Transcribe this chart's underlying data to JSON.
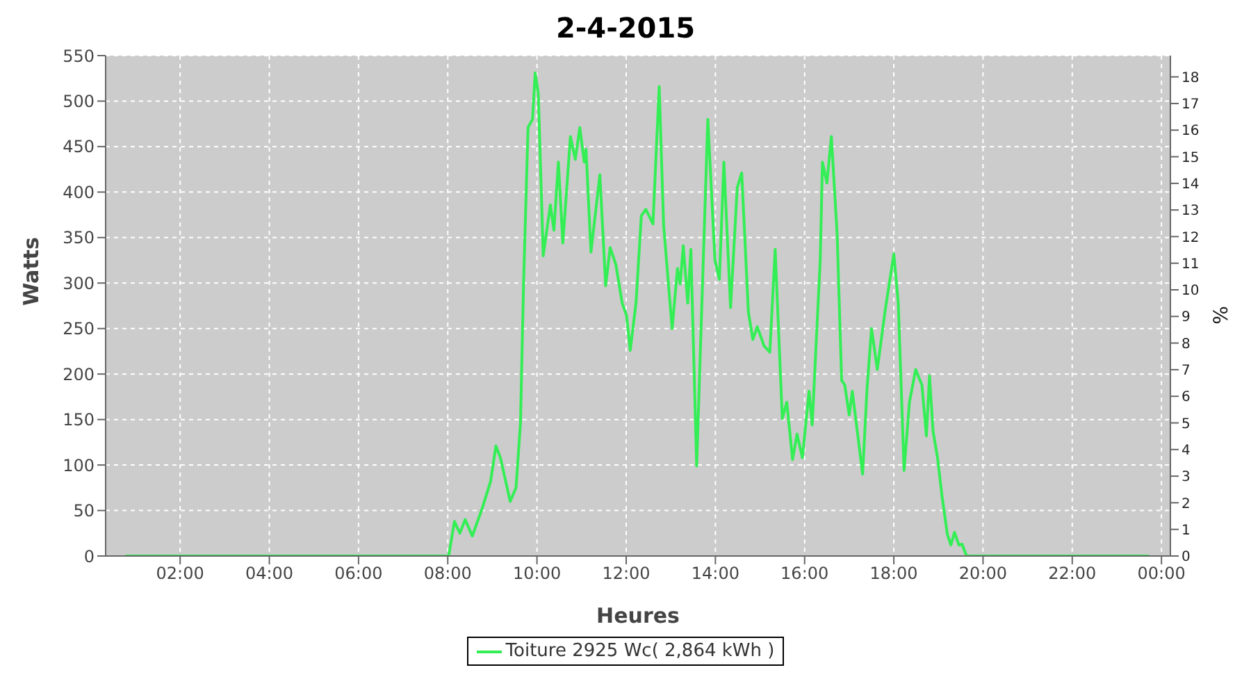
{
  "chart_data": {
    "type": "line",
    "title": "2-4-2015",
    "xlabel": "Heures",
    "ylabel": "Watts",
    "y2label": "%",
    "x": [
      0.77,
      1.5,
      2,
      2.5,
      3,
      3.5,
      4,
      4.5,
      5,
      5.5,
      6,
      6.5,
      7,
      7.5,
      8.02,
      8.15,
      8.27,
      8.39,
      8.55,
      8.77,
      8.96,
      9.08,
      9.18,
      9.4,
      9.53,
      9.63,
      9.7,
      9.8,
      9.9,
      9.96,
      10.03,
      10.14,
      10.3,
      10.38,
      10.48,
      10.58,
      10.75,
      10.86,
      10.96,
      11.06,
      11.1,
      11.21,
      11.41,
      11.54,
      11.64,
      11.77,
      11.91,
      12.01,
      12.09,
      12.22,
      12.34,
      12.44,
      12.6,
      12.74,
      12.84,
      13.03,
      13.15,
      13.21,
      13.28,
      13.38,
      13.45,
      13.58,
      13.71,
      13.83,
      13.99,
      14.09,
      14.19,
      14.34,
      14.49,
      14.59,
      14.74,
      14.84,
      14.94,
      15.09,
      15.22,
      15.34,
      15.5,
      15.6,
      15.73,
      15.83,
      15.95,
      16.1,
      16.17,
      16.35,
      16.4,
      16.5,
      16.6,
      16.73,
      16.83,
      16.9,
      17,
      17.07,
      17.3,
      17.4,
      17.5,
      17.63,
      17.8,
      18,
      18.1,
      18.23,
      18.35,
      18.49,
      18.63,
      18.73,
      18.8,
      18.88,
      18.98,
      19.08,
      19.2,
      19.28,
      19.36,
      19.46,
      19.53,
      19.63,
      20,
      20.5,
      21,
      21.5,
      22,
      22.5,
      23,
      23.72
    ],
    "series": [
      {
        "name": "Toiture 2925 Wc( 2,864 kWh )",
        "color": "#33ee55",
        "values": [
          0,
          0,
          0,
          0,
          0,
          0,
          0,
          0,
          0,
          0,
          0,
          0,
          0,
          0,
          0,
          38,
          25,
          40,
          22,
          52,
          82,
          121,
          108,
          60,
          75,
          146,
          301,
          471,
          480,
          531,
          508,
          330,
          386,
          358,
          433,
          344,
          461,
          436,
          471,
          433,
          447,
          334,
          419,
          297,
          339,
          320,
          278,
          264,
          226,
          278,
          374,
          381,
          365,
          516,
          363,
          250,
          316,
          299,
          341,
          278,
          337,
          99,
          297,
          480,
          325,
          304,
          433,
          273,
          405,
          421,
          268,
          238,
          252,
          231,
          224,
          337,
          151,
          169,
          106,
          134,
          108,
          181,
          144,
          325,
          433,
          410,
          461,
          353,
          193,
          188,
          155,
          181,
          90,
          184,
          250,
          205,
          268,
          332,
          278,
          94,
          169,
          205,
          188,
          132,
          198,
          137,
          108,
          66,
          24,
          12,
          26,
          12,
          13,
          0,
          0,
          0,
          0,
          0,
          0,
          0,
          0,
          0
        ]
      }
    ],
    "xlim": [
      0.33,
      24.2
    ],
    "xticks": [
      {
        "value": 2,
        "label": "02:00"
      },
      {
        "value": 4,
        "label": "04:00"
      },
      {
        "value": 6,
        "label": "06:00"
      },
      {
        "value": 8,
        "label": "08:00"
      },
      {
        "value": 10,
        "label": "10:00"
      },
      {
        "value": 12,
        "label": "12:00"
      },
      {
        "value": 14,
        "label": "14:00"
      },
      {
        "value": 16,
        "label": "16:00"
      },
      {
        "value": 18,
        "label": "18:00"
      },
      {
        "value": 20,
        "label": "20:00"
      },
      {
        "value": 22,
        "label": "22:00"
      },
      {
        "value": 24,
        "label": "00:00"
      }
    ],
    "ylim": [
      0,
      550
    ],
    "yticks": [
      0,
      50,
      100,
      150,
      200,
      250,
      300,
      350,
      400,
      450,
      500,
      550
    ],
    "y2lim": [
      0,
      18.8
    ],
    "y2ticks": [
      0,
      1,
      2,
      3,
      4,
      5,
      6,
      7,
      8,
      9,
      10,
      11,
      12,
      13,
      14,
      15,
      16,
      17,
      18
    ],
    "grid": true,
    "legend": "bottom",
    "marker": "none",
    "line_style": "solid"
  }
}
